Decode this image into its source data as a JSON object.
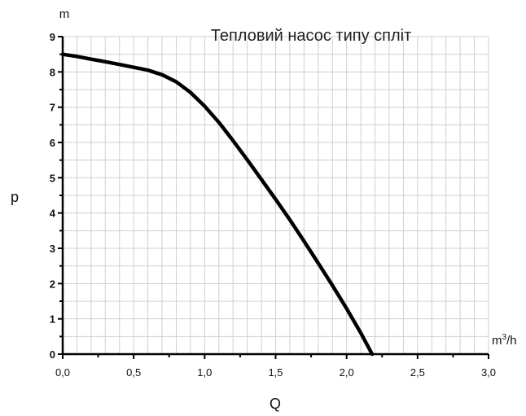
{
  "chart_data": {
    "type": "line",
    "title": "Тепловий насос типу спліт",
    "xlabel": "Q",
    "ylabel": "p",
    "x_unit": "m",
    "x_unit_sup": "3",
    "x_unit_suffix": "/h",
    "y_unit": "m",
    "xlim": [
      0,
      3.0
    ],
    "ylim": [
      0,
      9
    ],
    "x_ticks": [
      "0,0",
      "0,5",
      "1,0",
      "1,5",
      "2,0",
      "2,5",
      "3,0"
    ],
    "y_ticks": [
      "0",
      "1",
      "2",
      "3",
      "4",
      "5",
      "6",
      "7",
      "8",
      "9"
    ],
    "grid": true,
    "line_color": "#000000",
    "grid_color": "#cfcfcf",
    "series": [
      {
        "x": [
          0.0,
          0.1,
          0.2,
          0.3,
          0.4,
          0.5,
          0.6,
          0.7,
          0.8,
          0.9,
          1.0,
          1.1,
          1.2,
          1.3,
          1.4,
          1.5,
          1.6,
          1.7,
          1.8,
          1.9,
          2.0,
          2.1,
          2.18
        ],
        "y": [
          8.5,
          8.44,
          8.36,
          8.29,
          8.21,
          8.13,
          8.05,
          7.92,
          7.72,
          7.42,
          7.03,
          6.57,
          6.05,
          5.51,
          4.95,
          4.39,
          3.81,
          3.2,
          2.58,
          1.95,
          1.29,
          0.6,
          0.0
        ]
      }
    ]
  }
}
